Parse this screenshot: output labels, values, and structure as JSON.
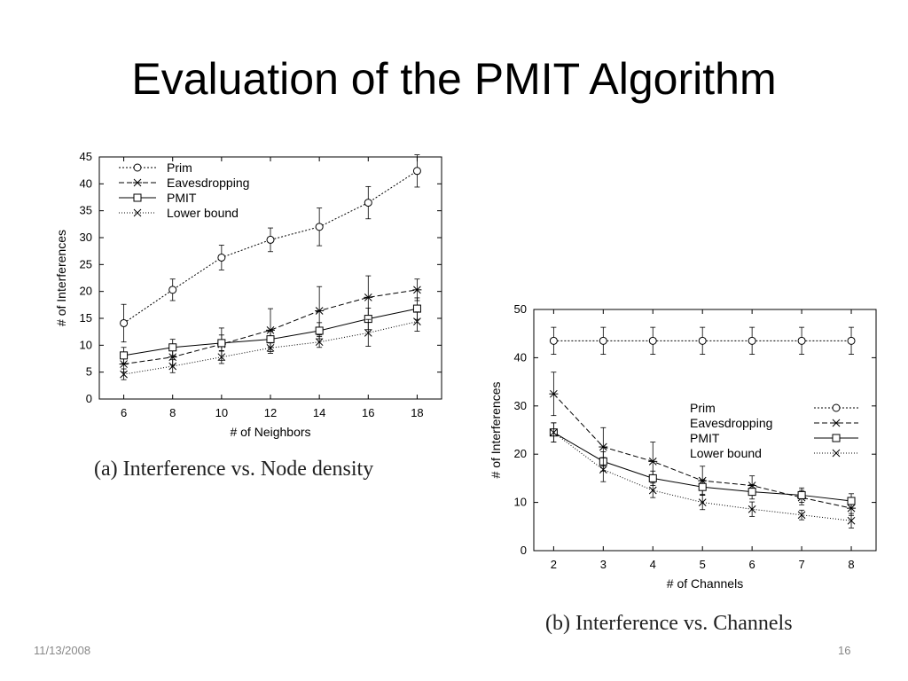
{
  "slide": {
    "title": "Evaluation of the PMIT Algorithm",
    "date": "11/13/2008",
    "page_number": "16"
  },
  "captions": {
    "a": "(a)  Interference vs. Node density",
    "b": "(b)  Interference vs. Channels"
  },
  "chart_data": [
    {
      "type": "line",
      "xlabel": "# of Neighbors",
      "ylabel": "# of Interferences",
      "xlim": [
        5,
        19
      ],
      "ylim": [
        0,
        45
      ],
      "xticks": [
        6,
        8,
        10,
        12,
        14,
        16,
        18
      ],
      "yticks": [
        0,
        5,
        10,
        15,
        20,
        25,
        30,
        35,
        40,
        45
      ],
      "grid": false,
      "legend": "top-left",
      "x": [
        6,
        8,
        10,
        12,
        14,
        16,
        18
      ],
      "series": [
        {
          "name": "Prim",
          "marker": "circle",
          "dash": "2,2",
          "values": [
            14.1,
            20.3,
            26.3,
            29.6,
            32.0,
            36.5,
            42.4
          ],
          "err": [
            3.5,
            2.0,
            2.3,
            2.2,
            3.5,
            3.0,
            3.0
          ]
        },
        {
          "name": "Eavesdropping",
          "marker": "star",
          "dash": "6,3",
          "values": [
            6.5,
            7.8,
            10.2,
            12.8,
            16.4,
            18.9,
            20.3
          ],
          "err": [
            1.5,
            1.5,
            3.0,
            4.0,
            4.5,
            4.0,
            2.0
          ]
        },
        {
          "name": "PMIT",
          "marker": "square",
          "dash": "",
          "values": [
            8.1,
            9.6,
            10.4,
            11.1,
            12.7,
            14.9,
            16.8
          ],
          "err": [
            1.5,
            1.5,
            1.5,
            1.5,
            1.5,
            2.0,
            2.0
          ]
        },
        {
          "name": "Lower bound",
          "marker": "x",
          "dash": "1,2",
          "values": [
            4.6,
            6.1,
            7.8,
            9.5,
            10.6,
            12.3,
            14.4
          ],
          "err": [
            1.0,
            1.2,
            1.2,
            1.0,
            1.0,
            2.5,
            1.8
          ]
        }
      ]
    },
    {
      "type": "line",
      "xlabel": "# of Channels",
      "ylabel": "# of Interferences",
      "xlim": [
        1.6,
        8.5
      ],
      "ylim": [
        0,
        50
      ],
      "xticks": [
        2,
        3,
        4,
        5,
        6,
        7,
        8
      ],
      "yticks": [
        0,
        10,
        20,
        30,
        40,
        50
      ],
      "grid": false,
      "legend": "center-right",
      "x": [
        2,
        3,
        4,
        5,
        6,
        7,
        8
      ],
      "series": [
        {
          "name": "Prim",
          "marker": "circle",
          "dash": "2,2",
          "values": [
            43.5,
            43.5,
            43.5,
            43.5,
            43.5,
            43.5,
            43.5
          ],
          "err": [
            2.8,
            2.8,
            2.8,
            2.8,
            2.8,
            2.8,
            2.8
          ]
        },
        {
          "name": "Eavesdropping",
          "marker": "star",
          "dash": "6,3",
          "values": [
            32.5,
            21.5,
            18.5,
            14.5,
            13.5,
            11.0,
            8.8
          ],
          "err": [
            4.5,
            4.0,
            4.0,
            3.0,
            2.0,
            1.5,
            1.5
          ]
        },
        {
          "name": "PMIT",
          "marker": "square",
          "dash": "",
          "values": [
            24.5,
            18.5,
            15.0,
            13.2,
            12.2,
            11.5,
            10.3
          ],
          "err": [
            2.0,
            2.0,
            1.5,
            1.5,
            1.5,
            1.5,
            1.5
          ]
        },
        {
          "name": "Lower bound",
          "marker": "x",
          "dash": "1,2",
          "values": [
            24.5,
            16.8,
            12.5,
            10.0,
            8.6,
            7.4,
            6.2
          ],
          "err": [
            2.0,
            2.5,
            1.5,
            1.5,
            1.5,
            1.0,
            1.5
          ]
        }
      ]
    }
  ]
}
